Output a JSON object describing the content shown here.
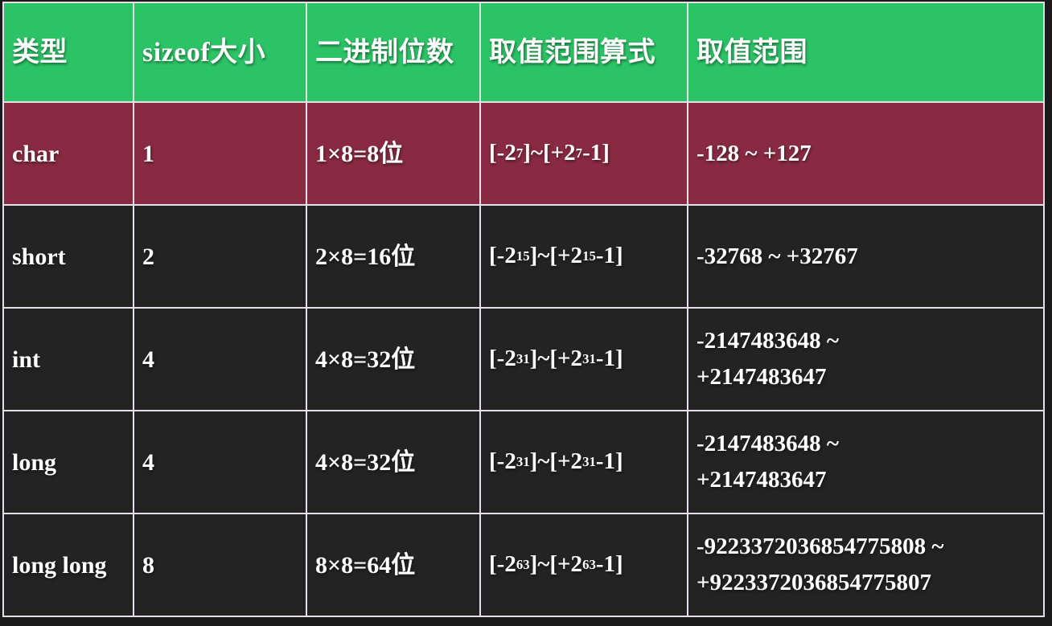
{
  "colors": {
    "page_bg": "#1a1a1a",
    "header_bg": "#2cc366",
    "highlight_row_bg": "#882a41",
    "row_bg": "#232323",
    "border": "#e4e0e8",
    "text": "#ffffff"
  },
  "table": {
    "headers": [
      {
        "label": "类型"
      },
      {
        "label": "sizeof大小"
      },
      {
        "label": "二进制位数"
      },
      {
        "label": "取值范围算式"
      },
      {
        "label": "取值范围"
      }
    ],
    "rows": [
      {
        "type": "char",
        "sizeof": "1",
        "bits": "1×8=8位",
        "formula": [
          {
            "t": "[-2"
          },
          {
            "s": "7"
          },
          {
            "t": "]~[+2"
          },
          {
            "s": "7"
          },
          {
            "t": "-1]"
          }
        ],
        "range": "-128 ~ +127",
        "highlight": true
      },
      {
        "type": "short",
        "sizeof": "2",
        "bits": "2×8=16位",
        "formula": [
          {
            "t": "[-2"
          },
          {
            "s": "15"
          },
          {
            "t": "]~[+2"
          },
          {
            "s": "15"
          },
          {
            "t": "-1]"
          }
        ],
        "range": "-32768 ~ +32767",
        "highlight": false
      },
      {
        "type": "int",
        "sizeof": "4",
        "bits": "4×8=32位",
        "formula": [
          {
            "t": "[-2"
          },
          {
            "s": "31"
          },
          {
            "t": "]~[+2"
          },
          {
            "s": "31"
          },
          {
            "t": "-1]"
          }
        ],
        "range": "-2147483648 ~\n+2147483647",
        "highlight": false
      },
      {
        "type": "long",
        "sizeof": "4",
        "bits": "4×8=32位",
        "formula": [
          {
            "t": "[-2"
          },
          {
            "s": "31"
          },
          {
            "t": "]~[+2"
          },
          {
            "s": "31"
          },
          {
            "t": "-1]"
          }
        ],
        "range": "-2147483648 ~\n+2147483647",
        "highlight": false
      },
      {
        "type": "long long",
        "sizeof": "8",
        "bits": "8×8=64位",
        "formula": [
          {
            "t": "[-2"
          },
          {
            "s": "63"
          },
          {
            "t": "]~[+2"
          },
          {
            "s": "63"
          },
          {
            "t": "-1]"
          }
        ],
        "range": "-9223372036854775808 ~\n+9223372036854775807",
        "highlight": false
      }
    ]
  }
}
